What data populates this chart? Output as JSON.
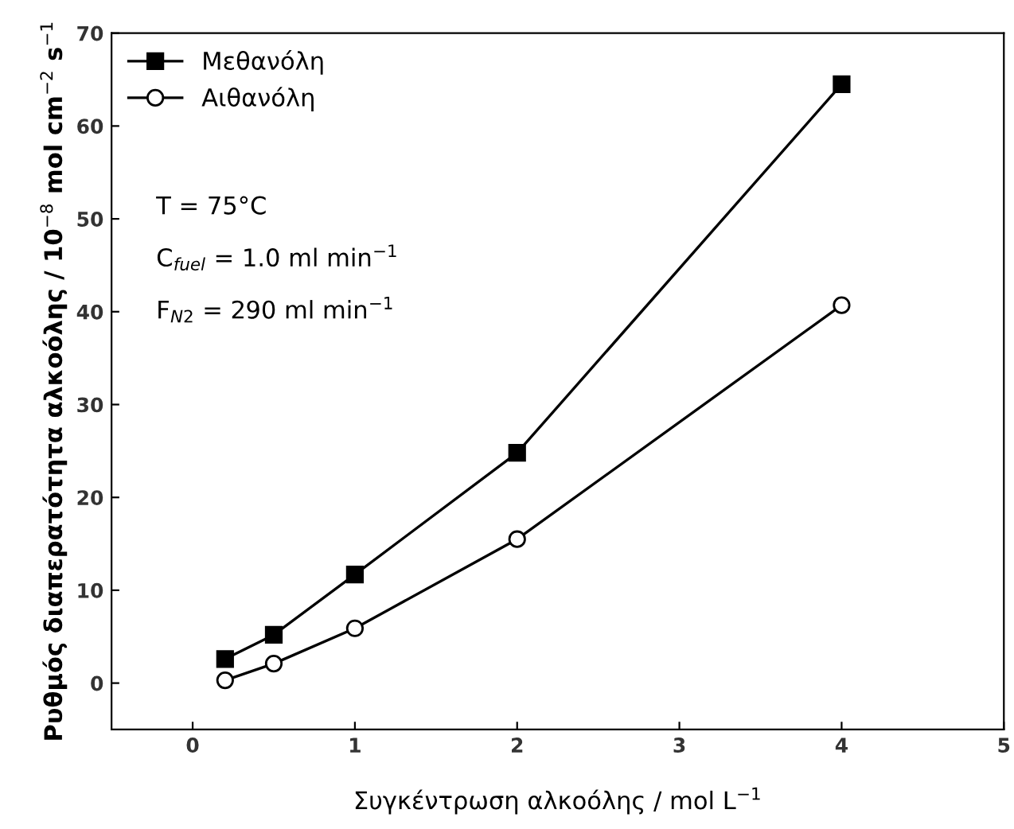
{
  "chart_data": {
    "type": "line",
    "xlabel": "Συγκέντρωση αλκοόλης / mol L$^{−1}$",
    "ylabel": "Ρυθμός διαπερατότητα αλκοόλης / 10$^{−8}$ mol cm$^{−2}$ s$^{−1}$",
    "x": [
      0.2,
      0.5,
      1,
      2,
      4
    ],
    "series": [
      {
        "name": "Μεθανόλη",
        "color": "#000000",
        "marker": "square",
        "values": [
          2.6,
          5.2,
          11.7,
          24.8,
          64.5
        ]
      },
      {
        "name": "Αιθανόλη",
        "color": "#000000",
        "marker": "circle",
        "values": [
          0.3,
          2.1,
          5.9,
          15.5,
          40.7
        ]
      }
    ],
    "xlim": [
      -0.5,
      5
    ],
    "xticks": [
      0,
      1,
      2,
      3,
      4,
      5
    ],
    "ylim": [
      -5,
      70
    ],
    "yticks": [
      0,
      10,
      20,
      30,
      40,
      50,
      60,
      70
    ],
    "annotations": [
      "T = 75°C",
      "C$_{fuel}$ = 1.0 ml min$^{−1}$",
      "F$_{N2}$ = 290 ml min$^{−1}$"
    ],
    "legend": "top left",
    "grid": false,
    "line_style": "solid"
  }
}
